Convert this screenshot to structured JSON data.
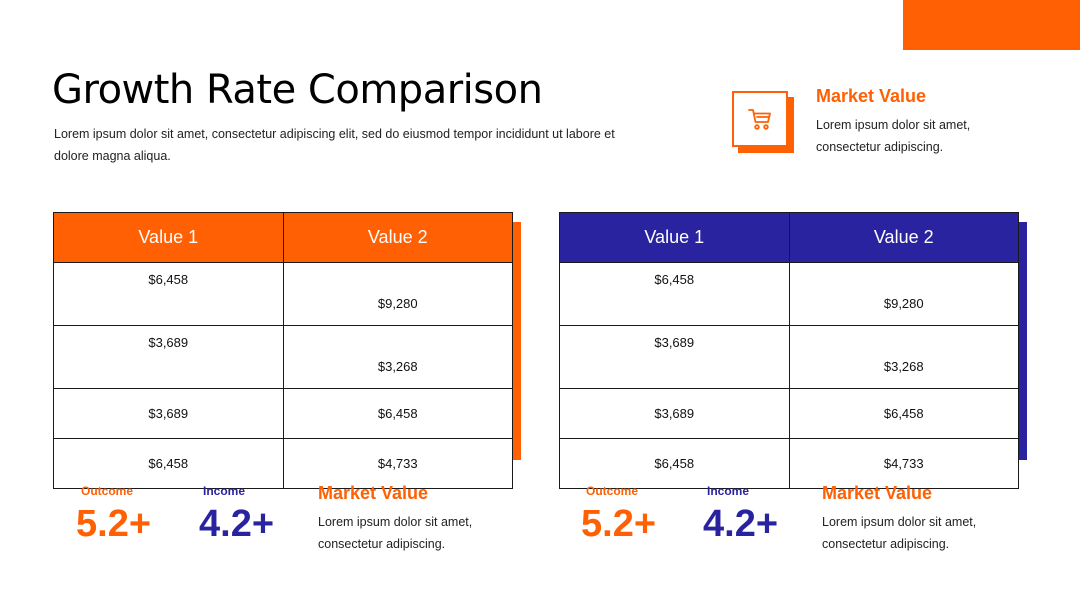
{
  "header": {
    "title": "Growth Rate Comparison",
    "subtitle": "Lorem ipsum dolor sit amet, consectetur adipiscing elit, sed do eiusmod tempor incididunt ut labore et dolore magna aliqua."
  },
  "top_feature": {
    "icon": "shopping-cart-icon",
    "title": "Market Value",
    "text": "Lorem ipsum dolor sit amet, consectetur adipiscing."
  },
  "colors": {
    "accent_orange": "#ff6003",
    "accent_blue": "#2a23a0"
  },
  "tables": [
    {
      "headers": [
        "Value 1",
        "Value 2"
      ],
      "rows": [
        [
          "$6,458",
          "$9,280"
        ],
        [
          "$3,689",
          "$3,268"
        ],
        [
          "$3,689",
          "$6,458"
        ],
        [
          "$6,458",
          "$4,733"
        ]
      ]
    },
    {
      "headers": [
        "Value 1",
        "Value 2"
      ],
      "rows": [
        [
          "$6,458",
          "$9,280"
        ],
        [
          "$3,689",
          "$3,268"
        ],
        [
          "$3,689",
          "$6,458"
        ],
        [
          "$6,458",
          "$4,733"
        ]
      ]
    }
  ],
  "stats": [
    {
      "outcome_label": "Outcome",
      "outcome_value": "5.2+",
      "income_label": "Income",
      "income_value": "4.2+",
      "mv_title": "Market Value",
      "mv_text": "Lorem ipsum dolor sit amet, consectetur adipiscing."
    },
    {
      "outcome_label": "Outcome",
      "outcome_value": "5.2+",
      "income_label": "Income",
      "income_value": "4.2+",
      "mv_title": "Market Value",
      "mv_text": "Lorem ipsum dolor sit amet, consectetur adipiscing."
    }
  ]
}
